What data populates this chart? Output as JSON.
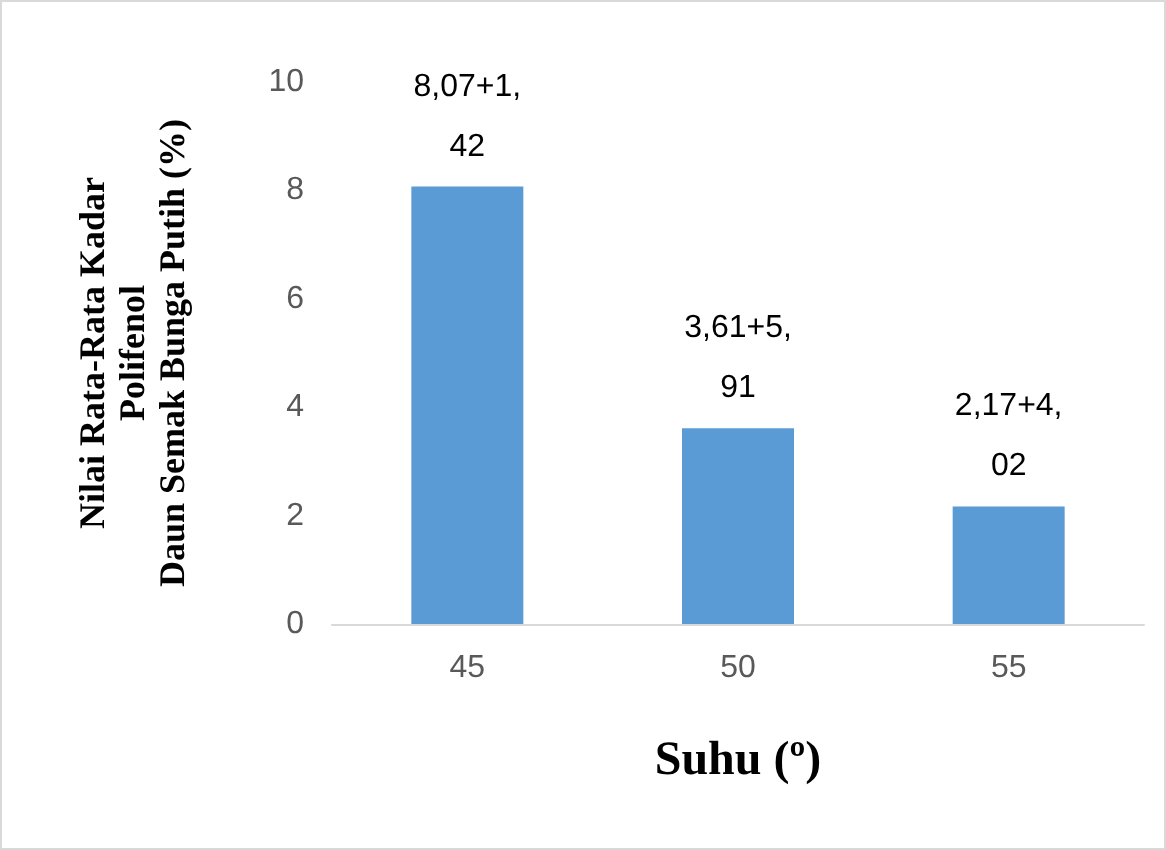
{
  "chart_data": {
    "type": "bar",
    "categories": [
      "45",
      "50",
      "55"
    ],
    "values": [
      8.07,
      3.61,
      2.17
    ],
    "color": "#5b9bd5",
    "value_labels": [
      "8,07+1,42",
      "3,61+5,91",
      "2,17+4,02"
    ],
    "xlabel": "Suhu (º)",
    "ylabel": "Nilai Rata-Rata Kadar\nPolifenol\nDaun Semak Bunga Putih (%)",
    "ylim": [
      0,
      10
    ],
    "yticks": [
      0,
      2,
      4,
      6,
      8,
      10
    ],
    "grid": false
  }
}
